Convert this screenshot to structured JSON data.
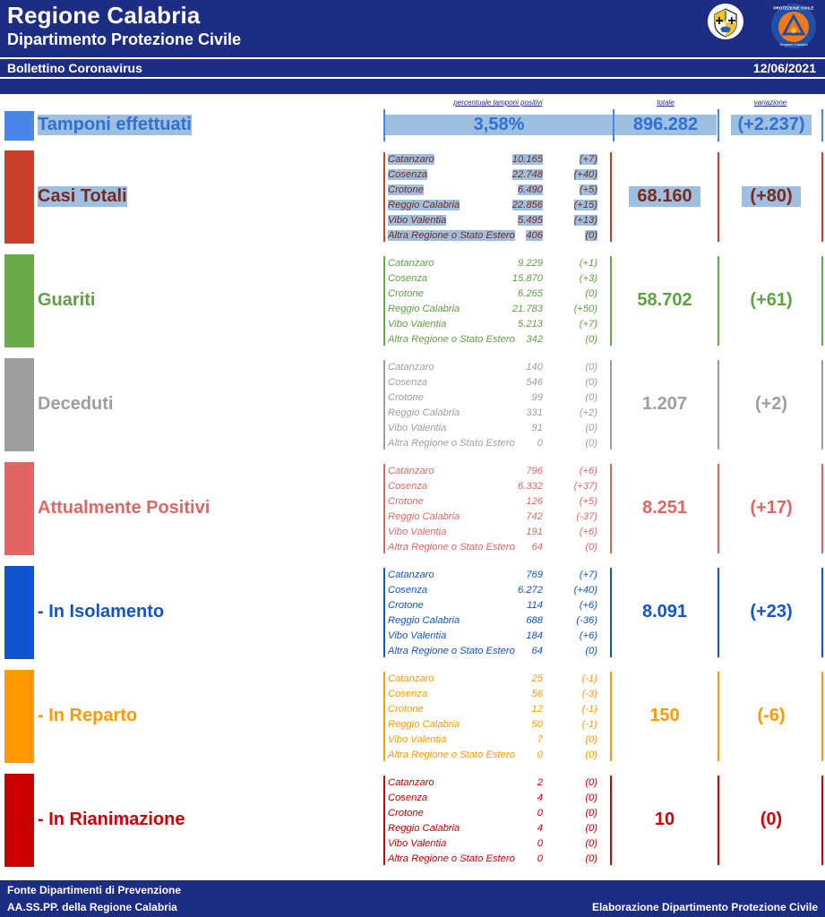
{
  "header": {
    "title": "Regione Calabria",
    "subtitle": "Dipartimento Protezione Civile",
    "bulletin": "Bollettino Coronavirus",
    "date": "12/06/2021",
    "colors": {
      "brand": "#1d2d84"
    }
  },
  "columns": {
    "percent_header": "percentuale tamponi positivi",
    "total_header": "totale",
    "variation_header": "variazione"
  },
  "tamponi": {
    "label": "Tamponi effettuati",
    "percent": "3,58%",
    "total": "896.282",
    "variation": "(+2.237)",
    "color": "#2f6fd8"
  },
  "sections": [
    {
      "key": "casi-totali",
      "label": "Casi Totali",
      "color": "#c9402a",
      "text_color": "#7a2a1c",
      "total": "68.160",
      "variation": "(+80)",
      "rows": [
        {
          "name": "Catanzaro",
          "value": "10.165",
          "delta": "(+7)"
        },
        {
          "name": "Cosenza",
          "value": "22.748",
          "delta": "(+40)"
        },
        {
          "name": "Crotone",
          "value": "6.490",
          "delta": "(+5)"
        },
        {
          "name": "Reggio Calabria",
          "value": "22.856",
          "delta": "(+15)"
        },
        {
          "name": "Vibo Valentia",
          "value": "5.495",
          "delta": "(+13)"
        },
        {
          "name": "Altra Regione o Stato Estero",
          "value": "406",
          "delta": "(0)"
        }
      ]
    },
    {
      "key": "guariti",
      "label": "Guariti",
      "color": "#6aaa4a",
      "text_color": "#5fa040",
      "total": "58.702",
      "variation": "(+61)",
      "rows": [
        {
          "name": "Catanzaro",
          "value": "9.229",
          "delta": "(+1)"
        },
        {
          "name": "Cosenza",
          "value": "15.870",
          "delta": "(+3)"
        },
        {
          "name": "Crotone",
          "value": "6.265",
          "delta": "(0)"
        },
        {
          "name": "Reggio Calabria",
          "value": "21.783",
          "delta": "(+50)"
        },
        {
          "name": "Vibo Valentia",
          "value": "5.213",
          "delta": "(+7)"
        },
        {
          "name": "Altra Regione o Stato Estero",
          "value": "342",
          "delta": "(0)"
        }
      ]
    },
    {
      "key": "deceduti",
      "label": "Deceduti",
      "color": "#9e9e9e",
      "text_color": "#9e9e9e",
      "total": "1.207",
      "variation": "(+2)",
      "rows": [
        {
          "name": "Catanzaro",
          "value": "140",
          "delta": "(0)"
        },
        {
          "name": "Cosenza",
          "value": "546",
          "delta": "(0)"
        },
        {
          "name": "Crotone",
          "value": "99",
          "delta": "(0)"
        },
        {
          "name": "Reggio Calabria",
          "value": "331",
          "delta": "(+2)"
        },
        {
          "name": "Vibo Valentia",
          "value": "91",
          "delta": "(0)"
        },
        {
          "name": "Altra Regione o Stato Estero",
          "value": "0",
          "delta": "(0)"
        }
      ]
    },
    {
      "key": "attualmente-positivi",
      "label": "Attualmente Positivi",
      "color": "#e06666",
      "text_color": "#e06666",
      "total": "8.251",
      "variation": "(+17)",
      "rows": [
        {
          "name": "Catanzaro",
          "value": "796",
          "delta": "(+6)"
        },
        {
          "name": "Cosenza",
          "value": "6.332",
          "delta": "(+37)"
        },
        {
          "name": "Crotone",
          "value": "126",
          "delta": "(+5)"
        },
        {
          "name": "Reggio Calabria",
          "value": "742",
          "delta": "(-37)"
        },
        {
          "name": "Vibo Valentia",
          "value": "191",
          "delta": "(+6)"
        },
        {
          "name": "Altra Regione o Stato Estero",
          "value": "64",
          "delta": "(0)"
        }
      ]
    },
    {
      "key": "in-isolamento",
      "label": "- In Isolamento",
      "color": "#1155cc",
      "text_color": "#1155cc",
      "total": "8.091",
      "variation": "(+23)",
      "rows": [
        {
          "name": "Catanzaro",
          "value": "769",
          "delta": "(+7)"
        },
        {
          "name": "Cosenza",
          "value": "6.272",
          "delta": "(+40)"
        },
        {
          "name": "Crotone",
          "value": "114",
          "delta": "(+6)"
        },
        {
          "name": "Reggio Calabria",
          "value": "688",
          "delta": "(-36)"
        },
        {
          "name": "Vibo Valentia",
          "value": "184",
          "delta": "(+6)"
        },
        {
          "name": "Altra Regione o Stato Estero",
          "value": "64",
          "delta": "(0)"
        }
      ]
    },
    {
      "key": "in-reparto",
      "label": "- In Reparto",
      "color": "#ff9900",
      "text_color": "#ff9900",
      "total": "150",
      "variation": "(-6)",
      "rows": [
        {
          "name": "Catanzaro",
          "value": "25",
          "delta": "(-1)"
        },
        {
          "name": "Cosenza",
          "value": "56",
          "delta": "(-3)"
        },
        {
          "name": "Crotone",
          "value": "12",
          "delta": "(-1)"
        },
        {
          "name": "Reggio Calabria",
          "value": "50",
          "delta": "(-1)"
        },
        {
          "name": "Vibo Valentia",
          "value": "7",
          "delta": "(0)"
        },
        {
          "name": "Altra Regione o Stato Estero",
          "value": "0",
          "delta": "(0)"
        }
      ]
    },
    {
      "key": "in-rianimazione",
      "label": "- In Rianimazione",
      "color": "#cc0000",
      "text_color": "#cc0000",
      "total": "10",
      "variation": "(0)",
      "rows": [
        {
          "name": "Catanzaro",
          "value": "2",
          "delta": "(0)"
        },
        {
          "name": "Cosenza",
          "value": "4",
          "delta": "(0)"
        },
        {
          "name": "Crotone",
          "value": "0",
          "delta": "(0)"
        },
        {
          "name": "Reggio Calabria",
          "value": "4",
          "delta": "(0)"
        },
        {
          "name": "Vibo Valentia",
          "value": "0",
          "delta": "(0)"
        },
        {
          "name": "Altra Regione o Stato Estero",
          "value": "0",
          "delta": "(0)"
        }
      ]
    }
  ],
  "footer": {
    "source_line1": "Fonte Dipartimenti di Prevenzione",
    "source_line2": "AA.SS.PP.  della Regione Calabria",
    "credit": "Elaborazione Dipartimento Protezione Civile"
  }
}
